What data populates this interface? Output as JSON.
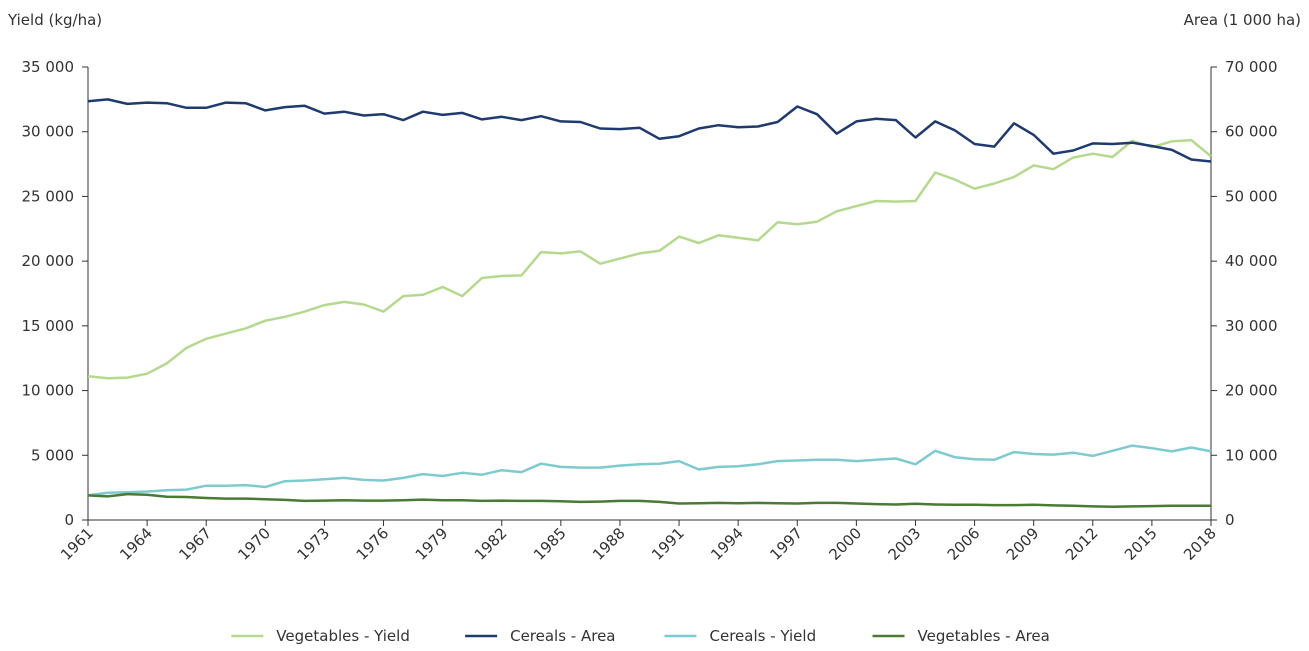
{
  "chart_data": {
    "type": "line",
    "y_label": "Yield (kg/ha)",
    "y2_label": "Area (1 000 ha)",
    "x": [
      1961,
      1962,
      1963,
      1964,
      1965,
      1966,
      1967,
      1968,
      1969,
      1970,
      1971,
      1972,
      1973,
      1974,
      1975,
      1976,
      1977,
      1978,
      1979,
      1980,
      1981,
      1982,
      1983,
      1984,
      1985,
      1986,
      1987,
      1988,
      1989,
      1990,
      1991,
      1992,
      1993,
      1994,
      1995,
      1996,
      1997,
      1998,
      1999,
      2000,
      2001,
      2002,
      2003,
      2004,
      2005,
      2006,
      2007,
      2008,
      2009,
      2010,
      2011,
      2012,
      2013,
      2014,
      2015,
      2016,
      2017,
      2018
    ],
    "xlim": [
      1961,
      2018
    ],
    "xticks": [
      1961,
      1964,
      1967,
      1970,
      1973,
      1976,
      1979,
      1982,
      1985,
      1988,
      1991,
      1994,
      1997,
      2000,
      2003,
      2006,
      2009,
      2012,
      2015,
      2018
    ],
    "ylim": [
      0,
      35000
    ],
    "yticks": [
      0,
      {
        "value": 5000,
        "label": "5 000"
      },
      {
        "value": 10000,
        "label": "10 000"
      },
      {
        "value": 15000,
        "label": "15 000"
      },
      {
        "value": 20000,
        "label": "20 000"
      },
      {
        "value": 25000,
        "label": "25 000"
      },
      {
        "value": 30000,
        "label": "30 000"
      },
      {
        "value": 35000,
        "label": "35 000"
      }
    ],
    "y2lim": [
      0,
      70000
    ],
    "y2ticks": [
      0,
      {
        "value": 10000,
        "label": "10 000"
      },
      {
        "value": 20000,
        "label": "20 000"
      },
      {
        "value": 30000,
        "label": "30 000"
      },
      {
        "value": 40000,
        "label": "40 000"
      },
      {
        "value": 50000,
        "label": "50 000"
      },
      {
        "value": 60000,
        "label": "60 000"
      },
      {
        "value": 70000,
        "label": "70 000"
      }
    ],
    "legend": "bottom",
    "series": [
      {
        "name": "Vegetables - Yield",
        "color": "#b5d98f",
        "values": [
          11100,
          10950,
          11000,
          11300,
          12100,
          13300,
          14000,
          14400,
          14800,
          15400,
          15700,
          16100,
          16600,
          16850,
          16650,
          16100,
          17300,
          17400,
          18000,
          17300,
          18700,
          18850,
          18900,
          20700,
          20600,
          20750,
          19800,
          20200,
          20600,
          20800,
          21900,
          21400,
          22000,
          21800,
          21600,
          23000,
          22850,
          23050,
          23850,
          24250,
          24650,
          24600,
          24650,
          26850,
          26300,
          25600,
          26000,
          26500,
          27400,
          27100,
          28000,
          28300,
          28050,
          29300,
          28800,
          29250,
          29350,
          28100
        ]
      },
      {
        "name": "Cereals - Area",
        "color": "#1f3a6e",
        "axis": "y2",
        "values": [
          64700,
          65000,
          64300,
          64500,
          64400,
          63700,
          63700,
          64500,
          64400,
          63300,
          63800,
          64000,
          62800,
          63100,
          62500,
          62700,
          61800,
          63100,
          62600,
          62900,
          61900,
          62300,
          61800,
          62400,
          61600,
          61500,
          60500,
          60400,
          60600,
          58900,
          59300,
          60500,
          61000,
          60700,
          60800,
          61500,
          63900,
          62700,
          59700,
          61600,
          62000,
          61800,
          59100,
          61600,
          60200,
          58100,
          57700,
          61300,
          59500,
          56600,
          57100,
          58200,
          58100,
          58300,
          57800,
          57200,
          55700,
          55400
        ]
      },
      {
        "name": "Cereals - Yield",
        "color": "#7ecbcf",
        "values": [
          1900,
          2100,
          2150,
          2200,
          2300,
          2350,
          2650,
          2650,
          2700,
          2550,
          3000,
          3050,
          3150,
          3250,
          3100,
          3050,
          3250,
          3550,
          3400,
          3650,
          3500,
          3850,
          3700,
          4350,
          4100,
          4050,
          4050,
          4200,
          4300,
          4350,
          4550,
          3900,
          4100,
          4150,
          4300,
          4550,
          4600,
          4650,
          4650,
          4550,
          4650,
          4750,
          4300,
          5350,
          4850,
          4700,
          4650,
          5250,
          5100,
          5050,
          5200,
          4950,
          5350,
          5750,
          5550,
          5300,
          5600,
          5300
        ]
      },
      {
        "name": "Vegetables - Area",
        "color": "#4b7a34",
        "axis": "y2",
        "values": [
          3800,
          3650,
          4000,
          3900,
          3600,
          3550,
          3400,
          3300,
          3300,
          3200,
          3100,
          2950,
          3000,
          3050,
          3000,
          3000,
          3050,
          3150,
          3050,
          3050,
          2950,
          3000,
          2950,
          2950,
          2900,
          2800,
          2850,
          2950,
          2950,
          2800,
          2550,
          2600,
          2650,
          2600,
          2650,
          2600,
          2550,
          2650,
          2650,
          2550,
          2450,
          2400,
          2500,
          2400,
          2350,
          2350,
          2300,
          2300,
          2350,
          2250,
          2200,
          2100,
          2050,
          2100,
          2150,
          2200,
          2200,
          2200
        ]
      }
    ]
  }
}
